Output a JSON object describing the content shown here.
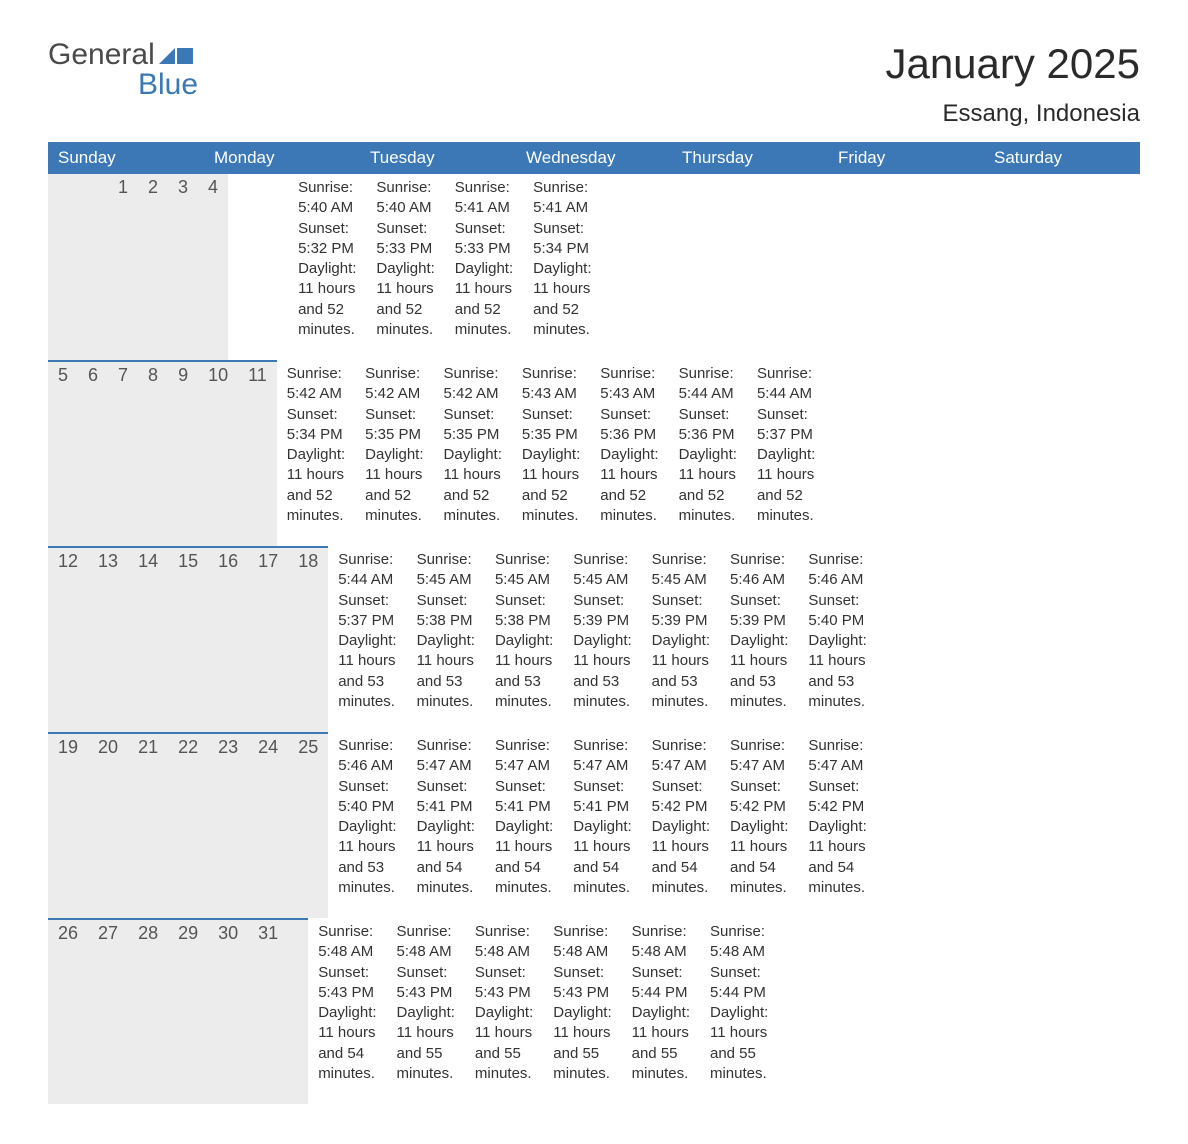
{
  "brand": {
    "line1": "General",
    "line2": "Blue",
    "accent_color": "#3b78b5"
  },
  "title": {
    "month_year": "January 2025",
    "location": "Essang, Indonesia"
  },
  "colors": {
    "header_bg": "#3b78b5",
    "header_text": "#ffffff",
    "daynum_bg": "#ececec",
    "daynum_text": "#555555",
    "body_text": "#333333",
    "background": "#ffffff",
    "row_border": "#3b78b5"
  },
  "typography": {
    "month_year_fontsize": 42,
    "location_fontsize": 24,
    "weekday_fontsize": 17,
    "daynum_fontsize": 18,
    "detail_fontsize": 15
  },
  "weekdays": [
    "Sunday",
    "Monday",
    "Tuesday",
    "Wednesday",
    "Thursday",
    "Friday",
    "Saturday"
  ],
  "weeks": [
    [
      null,
      null,
      null,
      {
        "day": "1",
        "sunrise": "Sunrise: 5:40 AM",
        "sunset": "Sunset: 5:32 PM",
        "daylight1": "Daylight: 11 hours",
        "daylight2": "and 52 minutes."
      },
      {
        "day": "2",
        "sunrise": "Sunrise: 5:40 AM",
        "sunset": "Sunset: 5:33 PM",
        "daylight1": "Daylight: 11 hours",
        "daylight2": "and 52 minutes."
      },
      {
        "day": "3",
        "sunrise": "Sunrise: 5:41 AM",
        "sunset": "Sunset: 5:33 PM",
        "daylight1": "Daylight: 11 hours",
        "daylight2": "and 52 minutes."
      },
      {
        "day": "4",
        "sunrise": "Sunrise: 5:41 AM",
        "sunset": "Sunset: 5:34 PM",
        "daylight1": "Daylight: 11 hours",
        "daylight2": "and 52 minutes."
      }
    ],
    [
      {
        "day": "5",
        "sunrise": "Sunrise: 5:42 AM",
        "sunset": "Sunset: 5:34 PM",
        "daylight1": "Daylight: 11 hours",
        "daylight2": "and 52 minutes."
      },
      {
        "day": "6",
        "sunrise": "Sunrise: 5:42 AM",
        "sunset": "Sunset: 5:35 PM",
        "daylight1": "Daylight: 11 hours",
        "daylight2": "and 52 minutes."
      },
      {
        "day": "7",
        "sunrise": "Sunrise: 5:42 AM",
        "sunset": "Sunset: 5:35 PM",
        "daylight1": "Daylight: 11 hours",
        "daylight2": "and 52 minutes."
      },
      {
        "day": "8",
        "sunrise": "Sunrise: 5:43 AM",
        "sunset": "Sunset: 5:35 PM",
        "daylight1": "Daylight: 11 hours",
        "daylight2": "and 52 minutes."
      },
      {
        "day": "9",
        "sunrise": "Sunrise: 5:43 AM",
        "sunset": "Sunset: 5:36 PM",
        "daylight1": "Daylight: 11 hours",
        "daylight2": "and 52 minutes."
      },
      {
        "day": "10",
        "sunrise": "Sunrise: 5:44 AM",
        "sunset": "Sunset: 5:36 PM",
        "daylight1": "Daylight: 11 hours",
        "daylight2": "and 52 minutes."
      },
      {
        "day": "11",
        "sunrise": "Sunrise: 5:44 AM",
        "sunset": "Sunset: 5:37 PM",
        "daylight1": "Daylight: 11 hours",
        "daylight2": "and 52 minutes."
      }
    ],
    [
      {
        "day": "12",
        "sunrise": "Sunrise: 5:44 AM",
        "sunset": "Sunset: 5:37 PM",
        "daylight1": "Daylight: 11 hours",
        "daylight2": "and 53 minutes."
      },
      {
        "day": "13",
        "sunrise": "Sunrise: 5:45 AM",
        "sunset": "Sunset: 5:38 PM",
        "daylight1": "Daylight: 11 hours",
        "daylight2": "and 53 minutes."
      },
      {
        "day": "14",
        "sunrise": "Sunrise: 5:45 AM",
        "sunset": "Sunset: 5:38 PM",
        "daylight1": "Daylight: 11 hours",
        "daylight2": "and 53 minutes."
      },
      {
        "day": "15",
        "sunrise": "Sunrise: 5:45 AM",
        "sunset": "Sunset: 5:39 PM",
        "daylight1": "Daylight: 11 hours",
        "daylight2": "and 53 minutes."
      },
      {
        "day": "16",
        "sunrise": "Sunrise: 5:45 AM",
        "sunset": "Sunset: 5:39 PM",
        "daylight1": "Daylight: 11 hours",
        "daylight2": "and 53 minutes."
      },
      {
        "day": "17",
        "sunrise": "Sunrise: 5:46 AM",
        "sunset": "Sunset: 5:39 PM",
        "daylight1": "Daylight: 11 hours",
        "daylight2": "and 53 minutes."
      },
      {
        "day": "18",
        "sunrise": "Sunrise: 5:46 AM",
        "sunset": "Sunset: 5:40 PM",
        "daylight1": "Daylight: 11 hours",
        "daylight2": "and 53 minutes."
      }
    ],
    [
      {
        "day": "19",
        "sunrise": "Sunrise: 5:46 AM",
        "sunset": "Sunset: 5:40 PM",
        "daylight1": "Daylight: 11 hours",
        "daylight2": "and 53 minutes."
      },
      {
        "day": "20",
        "sunrise": "Sunrise: 5:47 AM",
        "sunset": "Sunset: 5:41 PM",
        "daylight1": "Daylight: 11 hours",
        "daylight2": "and 54 minutes."
      },
      {
        "day": "21",
        "sunrise": "Sunrise: 5:47 AM",
        "sunset": "Sunset: 5:41 PM",
        "daylight1": "Daylight: 11 hours",
        "daylight2": "and 54 minutes."
      },
      {
        "day": "22",
        "sunrise": "Sunrise: 5:47 AM",
        "sunset": "Sunset: 5:41 PM",
        "daylight1": "Daylight: 11 hours",
        "daylight2": "and 54 minutes."
      },
      {
        "day": "23",
        "sunrise": "Sunrise: 5:47 AM",
        "sunset": "Sunset: 5:42 PM",
        "daylight1": "Daylight: 11 hours",
        "daylight2": "and 54 minutes."
      },
      {
        "day": "24",
        "sunrise": "Sunrise: 5:47 AM",
        "sunset": "Sunset: 5:42 PM",
        "daylight1": "Daylight: 11 hours",
        "daylight2": "and 54 minutes."
      },
      {
        "day": "25",
        "sunrise": "Sunrise: 5:47 AM",
        "sunset": "Sunset: 5:42 PM",
        "daylight1": "Daylight: 11 hours",
        "daylight2": "and 54 minutes."
      }
    ],
    [
      {
        "day": "26",
        "sunrise": "Sunrise: 5:48 AM",
        "sunset": "Sunset: 5:43 PM",
        "daylight1": "Daylight: 11 hours",
        "daylight2": "and 54 minutes."
      },
      {
        "day": "27",
        "sunrise": "Sunrise: 5:48 AM",
        "sunset": "Sunset: 5:43 PM",
        "daylight1": "Daylight: 11 hours",
        "daylight2": "and 55 minutes."
      },
      {
        "day": "28",
        "sunrise": "Sunrise: 5:48 AM",
        "sunset": "Sunset: 5:43 PM",
        "daylight1": "Daylight: 11 hours",
        "daylight2": "and 55 minutes."
      },
      {
        "day": "29",
        "sunrise": "Sunrise: 5:48 AM",
        "sunset": "Sunset: 5:43 PM",
        "daylight1": "Daylight: 11 hours",
        "daylight2": "and 55 minutes."
      },
      {
        "day": "30",
        "sunrise": "Sunrise: 5:48 AM",
        "sunset": "Sunset: 5:44 PM",
        "daylight1": "Daylight: 11 hours",
        "daylight2": "and 55 minutes."
      },
      {
        "day": "31",
        "sunrise": "Sunrise: 5:48 AM",
        "sunset": "Sunset: 5:44 PM",
        "daylight1": "Daylight: 11 hours",
        "daylight2": "and 55 minutes."
      },
      null
    ]
  ]
}
